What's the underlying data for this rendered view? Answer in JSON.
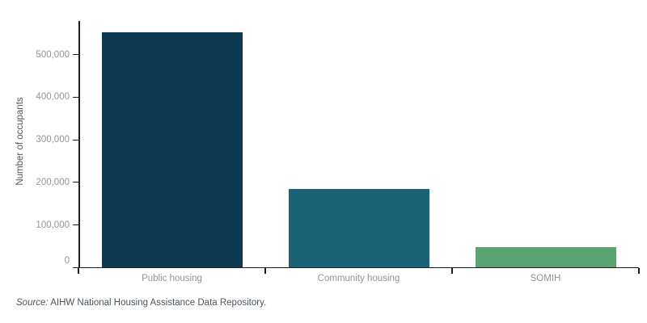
{
  "chart_data": {
    "type": "bar",
    "categories": [
      "Public housing",
      "Community housing",
      "SOMIH"
    ],
    "values": [
      554000,
      185000,
      50000
    ],
    "title": "",
    "xlabel": "",
    "ylabel": "Number of occupants",
    "ylim": [
      0,
      580000
    ],
    "yticks": [
      0,
      100000,
      200000,
      300000,
      400000,
      500000
    ],
    "ytick_labels": [
      "0",
      "100,000",
      "200,000",
      "300,000",
      "400,000",
      "500,000"
    ],
    "bar_colors": [
      "#0e3a51",
      "#1b6276",
      "#5aa471"
    ],
    "grid": false,
    "legend_position": "none",
    "axis_color": "#1f1f1f",
    "tick_label_color": "#8f959b",
    "axis_title_color": "#4e565e"
  },
  "footer": {
    "source_prefix": "Source:",
    "source_text": " AIHW National Housing Assistance Data Repository."
  }
}
